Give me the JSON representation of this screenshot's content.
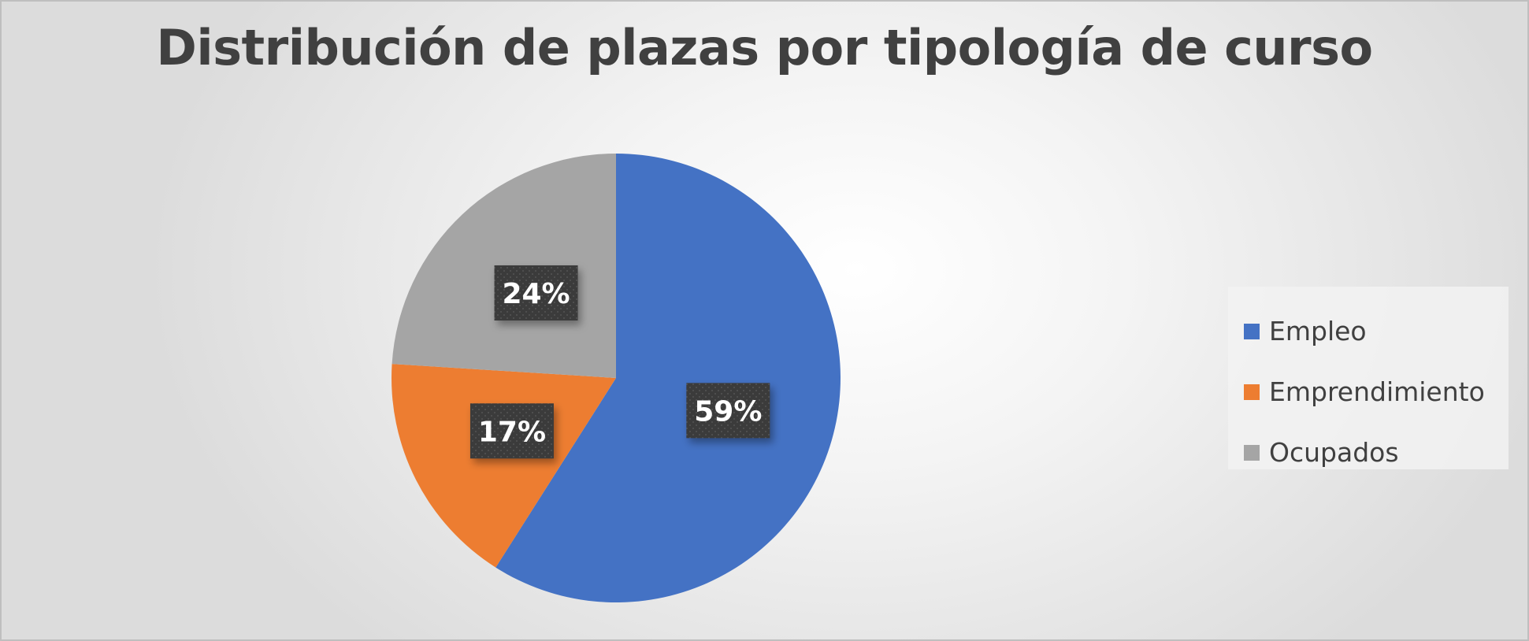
{
  "chart_data": {
    "type": "pie",
    "title": "Distribución de plazas por tipología de curso",
    "categories": [
      "Empleo",
      "Emprendimiento",
      "Ocupados"
    ],
    "values": [
      59,
      17,
      24
    ],
    "data_labels": [
      "59%",
      "17%",
      "24%"
    ],
    "colors": [
      "#4472c4",
      "#ed7d31",
      "#a5a5a5"
    ],
    "legend_placement": "right"
  }
}
